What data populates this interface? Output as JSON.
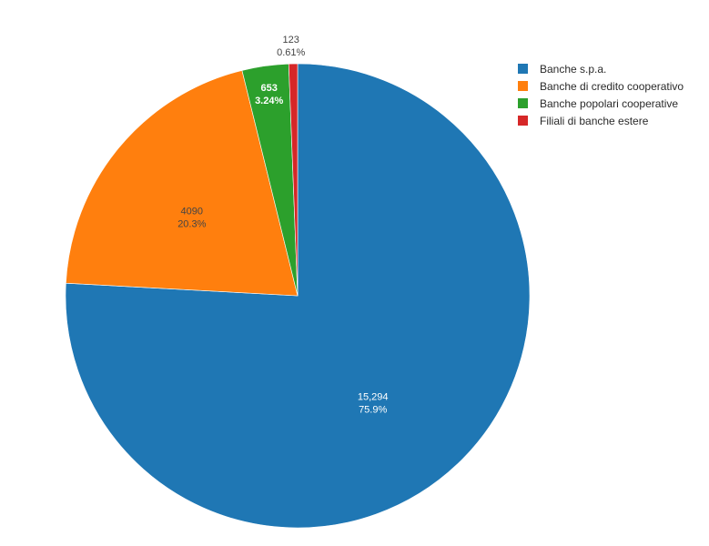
{
  "chart_data": {
    "type": "pie",
    "slices": [
      {
        "name": "Banche s.p.a.",
        "value": 15294,
        "value_label": "15,294",
        "percent_label": "75.9%",
        "color": "#1f77b4",
        "label_color": "#ffffff"
      },
      {
        "name": "Banche di credito cooperativo",
        "value": 4090,
        "value_label": "4090",
        "percent_label": "20.3%",
        "color": "#ff7f0e",
        "label_color": "#444444"
      },
      {
        "name": "Banche popolari cooperative",
        "value": 653,
        "value_label": "653",
        "percent_label": "3.24%",
        "color": "#2ca02c",
        "label_color": "#ffffff"
      },
      {
        "name": "Filiali di banche estere",
        "value": 123,
        "value_label": "123",
        "percent_label": "0.61%",
        "color": "#d62728",
        "label_color": "#444444"
      }
    ],
    "direction": "clockwise",
    "start_angle": "12 o'clock",
    "legend_position": "top-right"
  }
}
